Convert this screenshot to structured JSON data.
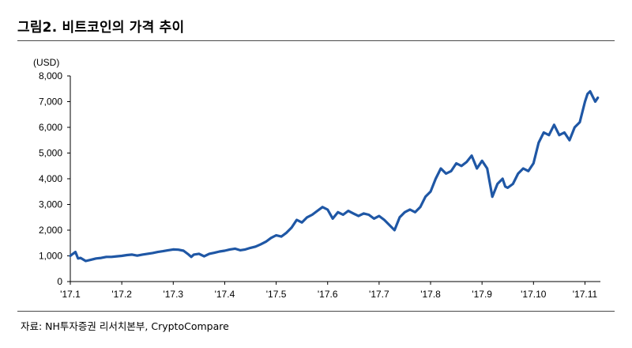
{
  "figure": {
    "title": "그림2. 비트코인의 가격 추이",
    "source": "자료: NH투자증권 리서치본부, CryptoCompare"
  },
  "chart_data": {
    "type": "line",
    "title": "",
    "xlabel": "",
    "ylabel": "(USD)",
    "ylim": [
      0,
      8000
    ],
    "yticks": [
      0,
      1000,
      2000,
      3000,
      4000,
      5000,
      6000,
      7000,
      8000
    ],
    "ytick_labels": [
      "0",
      "1,000",
      "2,000",
      "3,000",
      "4,000",
      "5,000",
      "6,000",
      "7,000",
      "8,000"
    ],
    "xlim": [
      1,
      11.3
    ],
    "xticks": [
      1,
      2,
      3,
      4,
      5,
      6,
      7,
      8,
      9,
      10,
      11
    ],
    "xtick_labels": [
      "'17.1",
      "'17.2",
      "'17.3",
      "'17.4",
      "'17.5",
      "'17.6",
      "'17.7",
      "'17.8",
      "'17.9",
      "'17.10",
      "'17.11"
    ],
    "grid": false,
    "line_color": "#1f57a5",
    "series": [
      {
        "x": [
          1.0,
          1.05,
          1.1,
          1.15,
          1.2,
          1.3,
          1.4,
          1.5,
          1.6,
          1.7,
          1.8,
          1.9,
          2.0,
          2.1,
          2.2,
          2.3,
          2.4,
          2.5,
          2.6,
          2.7,
          2.8,
          2.9,
          3.0,
          3.1,
          3.2,
          3.3,
          3.35,
          3.4,
          3.5,
          3.6,
          3.7,
          3.8,
          3.9,
          4.0,
          4.1,
          4.2,
          4.3,
          4.4,
          4.5,
          4.6,
          4.7,
          4.8,
          4.9,
          5.0,
          5.1,
          5.2,
          5.3,
          5.4,
          5.5,
          5.6,
          5.7,
          5.8,
          5.9,
          6.0,
          6.1,
          6.2,
          6.3,
          6.4,
          6.5,
          6.6,
          6.7,
          6.8,
          6.9,
          7.0,
          7.1,
          7.2,
          7.3,
          7.4,
          7.5,
          7.55,
          7.6,
          7.7,
          7.8,
          7.9,
          8.0,
          8.1,
          8.2,
          8.3,
          8.4,
          8.5,
          8.6,
          8.7,
          8.8,
          8.9,
          9.0,
          9.1,
          9.2,
          9.3,
          9.4,
          9.45,
          9.5,
          9.6,
          9.7,
          9.8,
          9.9,
          10.0,
          10.1,
          10.2,
          10.3,
          10.4,
          10.5,
          10.6,
          10.7,
          10.8,
          10.9,
          11.0,
          11.05,
          11.1,
          11.15,
          11.2,
          11.25
        ],
        "values": [
          1000,
          1080,
          1150,
          900,
          920,
          800,
          850,
          900,
          920,
          960,
          960,
          980,
          1000,
          1030,
          1050,
          1010,
          1050,
          1080,
          1110,
          1150,
          1180,
          1220,
          1250,
          1240,
          1200,
          1050,
          960,
          1050,
          1080,
          980,
          1080,
          1120,
          1170,
          1200,
          1250,
          1280,
          1220,
          1250,
          1310,
          1360,
          1450,
          1550,
          1700,
          1800,
          1750,
          1900,
          2100,
          2400,
          2300,
          2500,
          2600,
          2750,
          2900,
          2800,
          2450,
          2700,
          2600,
          2750,
          2650,
          2550,
          2650,
          2600,
          2450,
          2550,
          2400,
          2200,
          2000,
          2500,
          2700,
          2750,
          2800,
          2700,
          2900,
          3300,
          3500,
          4000,
          4400,
          4200,
          4300,
          4600,
          4500,
          4650,
          4900,
          4400,
          4700,
          4400,
          3300,
          3800,
          4000,
          3700,
          3650,
          3800,
          4200,
          4400,
          4300,
          4600,
          5400,
          5800,
          5700,
          6100,
          5700,
          5800,
          5500,
          6000,
          6200,
          7000,
          7300,
          7400,
          7200,
          7000,
          7150
        ]
      }
    ]
  }
}
